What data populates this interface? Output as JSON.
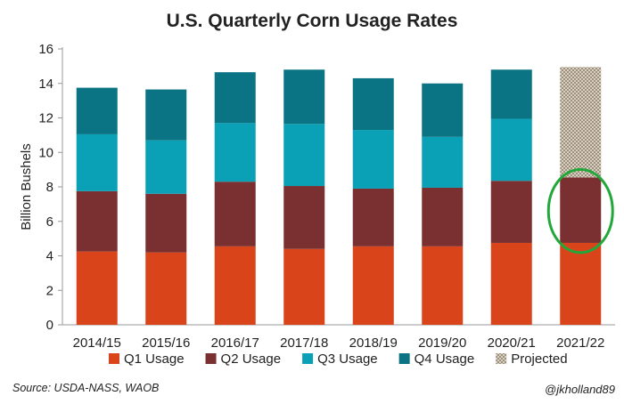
{
  "chart_data": {
    "type": "bar",
    "stacked": true,
    "title": "U.S. Quarterly Corn Usage Rates",
    "ylabel": "Billion Bushels",
    "xlabel": "",
    "ylim": [
      0,
      16
    ],
    "yticks": [
      0,
      2,
      4,
      6,
      8,
      10,
      12,
      14,
      16
    ],
    "grid": false,
    "categories": [
      "2014/15",
      "2015/16",
      "2016/17",
      "2017/18",
      "2018/19",
      "2019/20",
      "2020/21",
      "2021/22"
    ],
    "series": [
      {
        "name": "Q1 Usage",
        "color": "#d9441b",
        "values": [
          4.25,
          4.2,
          4.55,
          4.4,
          4.55,
          4.55,
          4.75,
          4.75
        ]
      },
      {
        "name": "Q2 Usage",
        "color": "#7a3030",
        "values": [
          3.5,
          3.4,
          3.75,
          3.65,
          3.35,
          3.4,
          3.6,
          3.8
        ]
      },
      {
        "name": "Q3 Usage",
        "color": "#0aa0b5",
        "values": [
          3.3,
          3.1,
          3.4,
          3.6,
          3.4,
          2.95,
          3.6,
          0
        ]
      },
      {
        "name": "Q4 Usage",
        "color": "#0b7484",
        "values": [
          2.7,
          2.95,
          2.95,
          3.15,
          3.0,
          3.1,
          2.85,
          0
        ]
      },
      {
        "name": "Projected",
        "color": "#b8ad9c",
        "pattern": "checker",
        "values": [
          0,
          0,
          0,
          0,
          0,
          0,
          0,
          6.4
        ]
      }
    ],
    "legend_position": "bottom",
    "annotation": {
      "type": "ellipse",
      "color": "#22a83a",
      "category": "2021/22"
    }
  },
  "footer": {
    "source": "Source: USDA-NASS, WAOB",
    "handle": "@jkholland89"
  }
}
